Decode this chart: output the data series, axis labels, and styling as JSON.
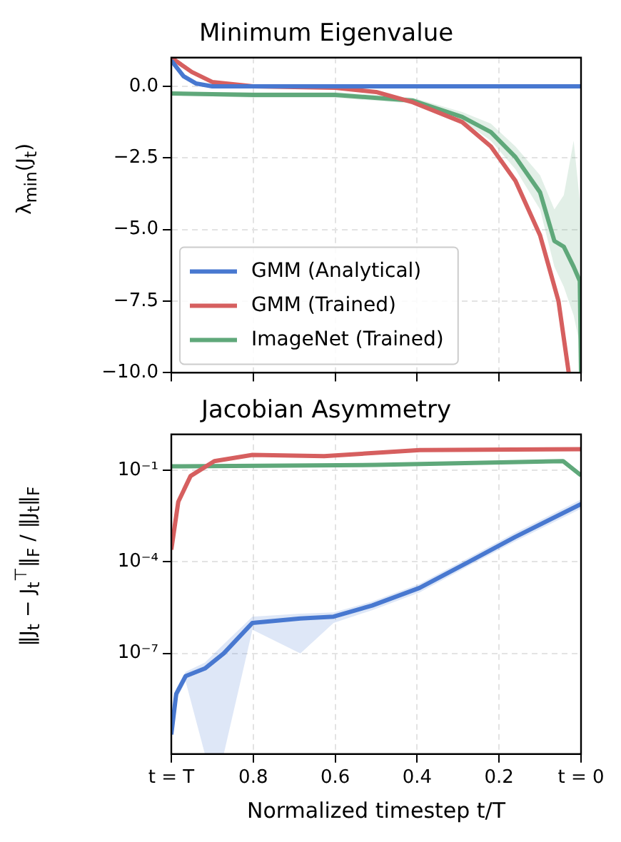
{
  "chart_data": [
    {
      "type": "line",
      "title": "Minimum Eigenvalue",
      "ylabel": "λ$_{min}$(J$_{t}$)",
      "xlim": [
        1,
        0
      ],
      "xticks": [
        {
          "value": 1,
          "label": null
        },
        {
          "value": 0.8,
          "label": null
        },
        {
          "value": 0.6,
          "label": null
        },
        {
          "value": 0.4,
          "label": null
        },
        {
          "value": 0.2,
          "label": null
        },
        {
          "value": 0,
          "label": null
        }
      ],
      "ylim": [
        -10,
        1
      ],
      "yticks": [
        {
          "value": 0,
          "label": "0.0"
        },
        {
          "value": -2.5,
          "label": "−2.5"
        },
        {
          "value": -5,
          "label": "−5.0"
        },
        {
          "value": -7.5,
          "label": "−7.5"
        },
        {
          "value": -10,
          "label": "−10.0"
        }
      ],
      "grid": true,
      "legend": "bottom left",
      "tick_labels": "y",
      "series": [
        {
          "name": "GMM (Analytical)",
          "color": "#4878d0",
          "x": [
            1,
            0.97,
            0.94,
            0.9,
            0
          ],
          "values": [
            0.9,
            0.35,
            0.1,
            0,
            0
          ]
        },
        {
          "name": "GMM (Trained)",
          "color": "#d65f5f",
          "x": [
            1,
            0.95,
            0.9,
            0.8,
            0.6,
            0.5,
            0.41,
            0.29,
            0.22,
            0.16,
            0.1,
            0.055,
            0.03
          ],
          "values": [
            1,
            0.5,
            0.15,
            0,
            -0.05,
            -0.2,
            -0.56,
            -1.25,
            -2.1,
            -3.3,
            -5.2,
            -7.5,
            -10
          ]
        },
        {
          "name": "ImageNet (Trained)",
          "color": "#5fa87a",
          "x": [
            1,
            0.8,
            0.6,
            0.41,
            0.29,
            0.22,
            0.16,
            0.1,
            0.065,
            0.042,
            0.018,
            0.003,
            0
          ],
          "values": [
            -0.25,
            -0.3,
            -0.3,
            -0.5,
            -1.07,
            -1.6,
            -2.47,
            -3.7,
            -5.4,
            -5.6,
            -6.3,
            -6.8,
            -10
          ],
          "upper": [
            -0.2,
            -0.2,
            -0.2,
            -0.4,
            -0.9,
            -1.3,
            -2.1,
            -3.1,
            -4.3,
            -3.8,
            -1.9,
            -4,
            -6
          ],
          "lower": [
            -0.3,
            -0.4,
            -0.4,
            -0.6,
            -1.2,
            -1.9,
            -2.9,
            -4.3,
            -6.3,
            -7,
            -8,
            -9,
            -10
          ]
        }
      ]
    },
    {
      "type": "line",
      "title": "Jacobian Asymmetry",
      "xlabel": "Normalized timestep t/T",
      "ylabel": "‖J$_{t}$ − J$_{t}$$^{⊤}$‖$_{F}$ / ‖J$_{t}$‖$_{F}$",
      "xlim": [
        1,
        0
      ],
      "xticks": [
        {
          "value": 1,
          "label": "t = T"
        },
        0.8,
        0.6,
        0.4,
        0.2,
        {
          "value": 0,
          "label": "t = 0"
        }
      ],
      "log": "y",
      "ylim": [
        5e-11,
        1.5
      ],
      "yticks": [
        {
          "value": 0.1,
          "label": "10⁻¹"
        },
        {
          "value": 0.0001,
          "label": "10⁻⁴"
        },
        {
          "value": 1e-07,
          "label": "10⁻⁷"
        }
      ],
      "grid": true,
      "series": [
        {
          "color": "#4878d0",
          "x": [
            1,
            0.988,
            0.965,
            0.918,
            0.872,
            0.802,
            0.685,
            0.604,
            0.51,
            0.394,
            0.277,
            0.161,
            0
          ],
          "values": [
            2.2e-10,
            4.7e-09,
            1.8e-08,
            3.2e-08,
            1e-07,
            1e-06,
            1.4e-06,
            1.6e-06,
            3.7e-06,
            1.4e-05,
            9.5e-05,
            0.00065,
            0.0078
          ],
          "upper": [
            3e-10,
            7e-09,
            2.5e-08,
            5e-08,
            2e-07,
            1.6e-06,
            2e-06,
            2.2e-06,
            5e-06,
            1.9e-05,
            0.00013,
            0.0009,
            0.011
          ],
          "lower": [
            1.5e-10,
            3e-09,
            1.2e-08,
            5e-11,
            5e-11,
            6e-07,
            1e-07,
            1e-06,
            2.6e-06,
            1e-05,
            7e-05,
            0.00047,
            0.0055
          ]
        },
        {
          "color": "#d65f5f",
          "x": [
            1,
            0.983,
            0.953,
            0.895,
            0.802,
            0.627,
            0.394,
            0
          ],
          "values": [
            0.00025,
            0.0093,
            0.065,
            0.2,
            0.32,
            0.29,
            0.46,
            0.49
          ]
        },
        {
          "color": "#5fa87a",
          "x": [
            1,
            0.5,
            0.044,
            0
          ],
          "values": [
            0.135,
            0.15,
            0.2,
            0.068
          ]
        }
      ]
    }
  ]
}
